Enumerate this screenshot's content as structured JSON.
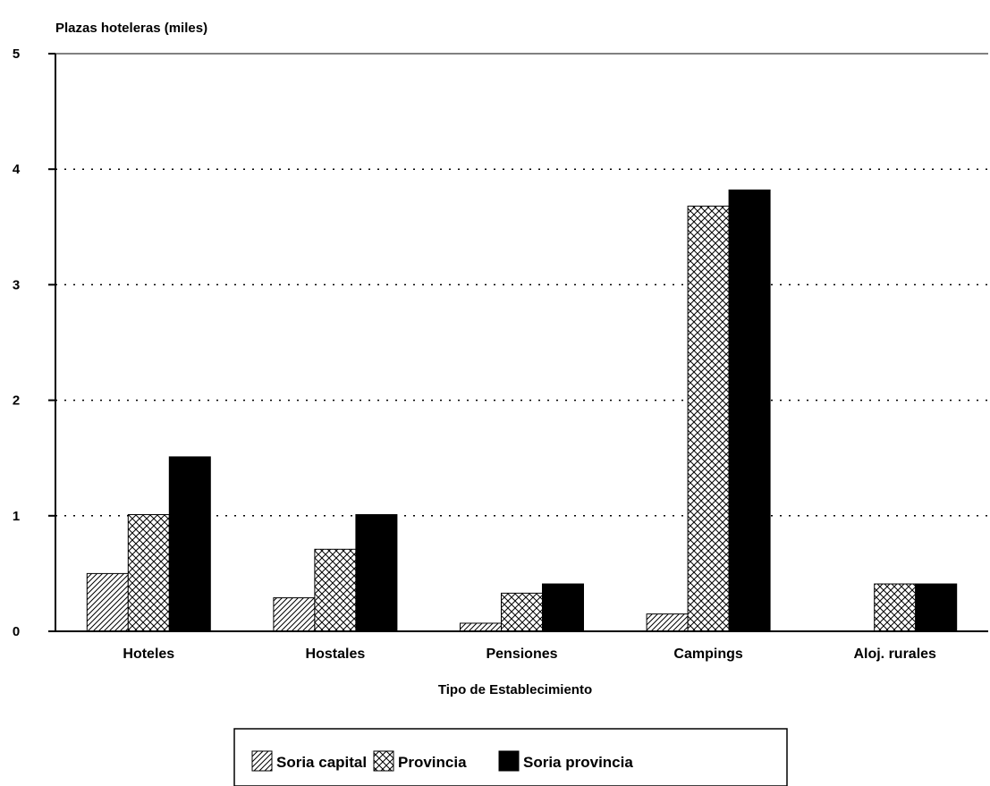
{
  "chart_data": {
    "type": "bar",
    "title": "",
    "ylabel": "Plazas hoteleras (miles)",
    "xlabel": "Tipo de Establecimiento",
    "categories": [
      "Hoteles",
      "Hostales",
      "Pensiones",
      "Campings",
      "Aloj. rurales"
    ],
    "ylim": [
      0,
      5
    ],
    "yticks": [
      "0",
      "1",
      "2",
      "3",
      "4",
      "5"
    ],
    "grid": "dotted horizontal",
    "legend_position": "bottom",
    "series": [
      {
        "name": "Soria capital",
        "values": [
          0.5,
          0.29,
          0.07,
          0.15,
          0
        ],
        "pattern": "diagonal-hatch",
        "color": "#000000"
      },
      {
        "name": "Provincia",
        "values": [
          1.01,
          0.71,
          0.33,
          3.68,
          0.41
        ],
        "pattern": "cross-hatch",
        "color": "#000000"
      },
      {
        "name": "Soria provincia",
        "values": [
          1.51,
          1.01,
          0.41,
          3.82,
          0.41
        ],
        "pattern": "solid",
        "color": "#000000"
      }
    ]
  }
}
